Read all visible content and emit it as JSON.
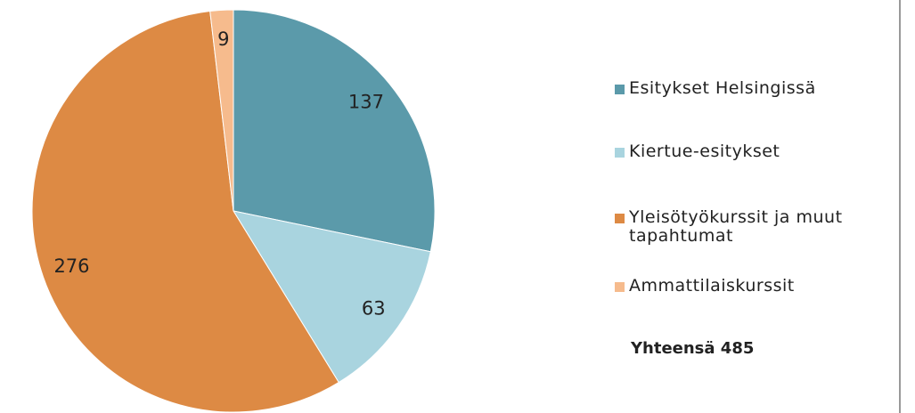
{
  "chart_data": {
    "type": "pie",
    "categories": [
      "Esitykset Helsingissä",
      "Kiertue-esitykset",
      "Yleisötyökurssit ja muut tapahtumat",
      "Ammattilaiskurssit"
    ],
    "values": [
      137,
      63,
      276,
      9
    ],
    "colors": [
      "#5b9aaa",
      "#a9d4df",
      "#dd8a44",
      "#f6bb8d"
    ],
    "annotation": "Yhteensä 485"
  }
}
